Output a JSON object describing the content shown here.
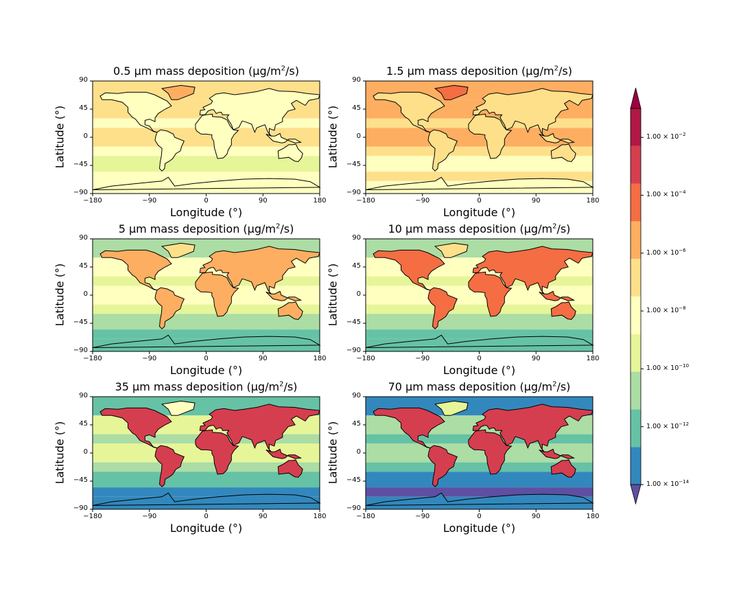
{
  "chart_data": [
    {
      "type": "heatmap",
      "title_main": "0.5 µm mass deposition (µg/m",
      "title_sup": "2",
      "title_tail": "/s)",
      "xlabel": "Longitude (°)",
      "ylabel": "Latitude (°)",
      "xlim": [
        -180,
        180
      ],
      "ylim": [
        -90,
        90
      ],
      "xticks": [
        "−180",
        "−90",
        "0",
        "90",
        "180"
      ],
      "yticks": [
        "90",
        "45",
        "0",
        "−45",
        "−90"
      ],
      "land_level": 6,
      "ocean_level": 6,
      "tropics_level": 5,
      "polar_level": 6
    },
    {
      "type": "heatmap",
      "title_main": "1.5 µm mass deposition (µg/m",
      "title_sup": "2",
      "title_tail": "/s)",
      "xlabel": "Longitude (°)",
      "ylabel": "Latitude (°)",
      "xlim": [
        -180,
        180
      ],
      "ylim": [
        -90,
        90
      ],
      "xticks": [
        "−180",
        "−90",
        "0",
        "90",
        "180"
      ],
      "yticks": [
        "90",
        "45",
        "0",
        "−45",
        "−90"
      ],
      "land_level": 5,
      "ocean_level": 5,
      "tropics_level": 4,
      "polar_level": 6
    },
    {
      "type": "heatmap",
      "title_main": "5 µm mass deposition (µg/m",
      "title_sup": "2",
      "title_tail": "/s)",
      "xlabel": "Longitude (°)",
      "ylabel": "Latitude (°)",
      "xlim": [
        -180,
        180
      ],
      "ylim": [
        -90,
        90
      ],
      "xticks": [
        "−180",
        "−90",
        "0",
        "90",
        "180"
      ],
      "yticks": [
        "90",
        "45",
        "0",
        "−45",
        "−90"
      ],
      "land_level": 4,
      "ocean_level": 7,
      "tropics_level": 6,
      "polar_level": 9
    },
    {
      "type": "heatmap",
      "title_main": "10 µm mass deposition (µg/m",
      "title_sup": "2",
      "title_tail": "/s)",
      "xlabel": "Longitude (°)",
      "ylabel": "Latitude (°)",
      "xlim": [
        -180,
        180
      ],
      "ylim": [
        -90,
        90
      ],
      "xticks": [
        "−180",
        "−90",
        "0",
        "90",
        "180"
      ],
      "yticks": [
        "90",
        "45",
        "0",
        "−45",
        "−90"
      ],
      "land_level": 3,
      "ocean_level": 7,
      "tropics_level": 6,
      "polar_level": 9
    },
    {
      "type": "heatmap",
      "title_main": "35 µm mass deposition (µg/m",
      "title_sup": "2",
      "title_tail": "/s)",
      "xlabel": "Longitude (°)",
      "ylabel": "Latitude (°)",
      "xlim": [
        -180,
        180
      ],
      "ylim": [
        -90,
        90
      ],
      "xticks": [
        "−180",
        "−90",
        "0",
        "90",
        "180"
      ],
      "yticks": [
        "90",
        "45",
        "0",
        "−45",
        "−90"
      ],
      "land_level": 2,
      "ocean_level": 8,
      "tropics_level": 7,
      "polar_level": 10
    },
    {
      "type": "heatmap",
      "title_main": "70 µm mass deposition (µg/m",
      "title_sup": "2",
      "title_tail": "/s)",
      "xlabel": "Longitude (°)",
      "ylabel": "Latitude (°)",
      "xlim": [
        -180,
        180
      ],
      "ylim": [
        -90,
        90
      ],
      "xticks": [
        "−180",
        "−90",
        "0",
        "90",
        "180"
      ],
      "yticks": [
        "90",
        "45",
        "0",
        "−45",
        "−90"
      ],
      "land_level": 2,
      "ocean_level": 9,
      "tropics_level": 8,
      "polar_level": 10
    }
  ],
  "colorbar": {
    "scale": "log",
    "range": [
      1e-14,
      0.1
    ],
    "extend": "both",
    "colors": [
      "#5e4fa2",
      "#3288bd",
      "#66c2a5",
      "#abdda4",
      "#e6f598",
      "#ffffbf",
      "#fee08b",
      "#fdae61",
      "#f46d43",
      "#d53e4f",
      "#b11845",
      "#9e0142"
    ],
    "ticks": [
      {
        "mant": "1.00 × 10",
        "exp": "−14",
        "value": 1e-14
      },
      {
        "mant": "1.00 × 10",
        "exp": "−12",
        "value": 1e-12
      },
      {
        "mant": "1.00 × 10",
        "exp": "−10",
        "value": 1e-10
      },
      {
        "mant": "1.00 × 10",
        "exp": "−8",
        "value": 1e-08
      },
      {
        "mant": "1.00 × 10",
        "exp": "−6",
        "value": 1e-06
      },
      {
        "mant": "1.00 × 10",
        "exp": "−4",
        "value": 0.0001
      },
      {
        "mant": "1.00 × 10",
        "exp": "−2",
        "value": 0.01
      }
    ]
  }
}
